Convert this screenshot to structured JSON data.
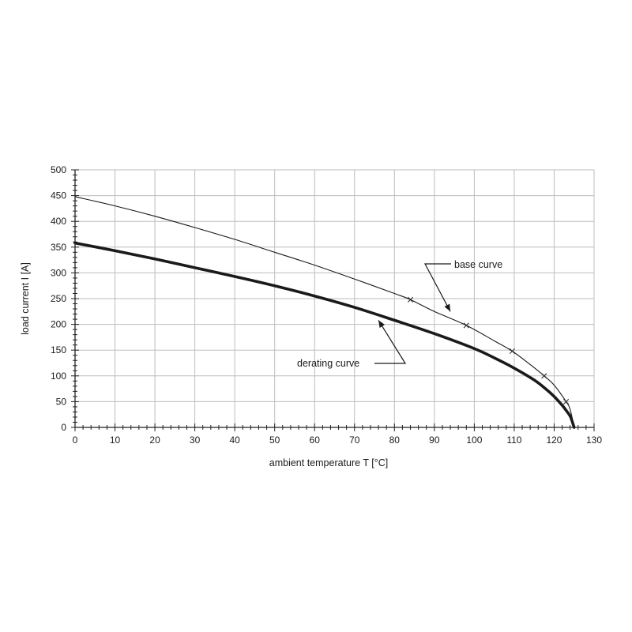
{
  "chart_data": {
    "type": "line",
    "xlabel": "ambient temperature T [°C]",
    "ylabel": "load current I [A]",
    "xlim": [
      0,
      130
    ],
    "ylim": [
      0,
      500
    ],
    "x_ticks": [
      0,
      10,
      20,
      30,
      40,
      50,
      60,
      70,
      80,
      90,
      100,
      110,
      120,
      130
    ],
    "y_ticks": [
      0,
      50,
      100,
      150,
      200,
      250,
      300,
      350,
      400,
      450,
      500
    ],
    "x_minor_step": 2,
    "y_minor_step": 10,
    "grid": true,
    "series": [
      {
        "name": "base curve",
        "style": "thin",
        "color": "#1a1a1a",
        "x": [
          0,
          10,
          20,
          30,
          40,
          50,
          60,
          70,
          80,
          84,
          90,
          98,
          105,
          109.5,
          114,
          117.5,
          120,
          123,
          124,
          125
        ],
        "y": [
          448,
          430,
          410,
          388,
          365,
          340,
          315,
          288,
          260,
          248,
          225,
          198,
          168,
          148,
          122,
          100,
          82,
          50,
          35,
          0
        ],
        "markers_x": [
          84,
          98,
          109.5,
          117.5,
          123
        ],
        "markers_y": [
          248,
          198,
          148,
          100,
          50
        ]
      },
      {
        "name": "derating curve",
        "style": "bold",
        "color": "#1a1a1a",
        "x": [
          0,
          10,
          20,
          30,
          40,
          50,
          60,
          70,
          80,
          90,
          100,
          105,
          110,
          115,
          118,
          120,
          122,
          123,
          124,
          124.5,
          125
        ],
        "y": [
          358,
          343,
          327,
          310,
          293,
          275,
          255,
          233,
          208,
          182,
          153,
          135,
          115,
          92,
          74,
          60,
          43,
          33,
          22,
          12,
          0
        ]
      }
    ],
    "annotations": [
      {
        "text": "base curve",
        "anchor_x": 94,
        "anchor_y": 225
      },
      {
        "text": "derating curve",
        "anchor_x": 76,
        "anchor_y": 208
      }
    ]
  }
}
